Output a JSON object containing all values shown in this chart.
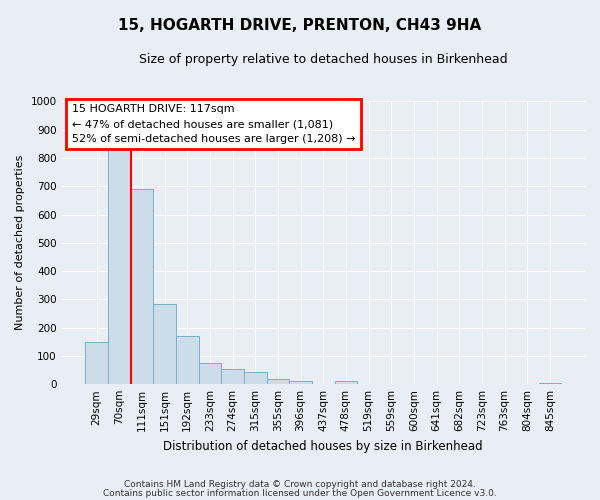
{
  "title": "15, HOGARTH DRIVE, PRENTON, CH43 9HA",
  "subtitle": "Size of property relative to detached houses in Birkenhead",
  "xlabel": "Distribution of detached houses by size in Birkenhead",
  "ylabel": "Number of detached properties",
  "bar_labels": [
    "29sqm",
    "70sqm",
    "111sqm",
    "151sqm",
    "192sqm",
    "233sqm",
    "274sqm",
    "315sqm",
    "355sqm",
    "396sqm",
    "437sqm",
    "478sqm",
    "519sqm",
    "559sqm",
    "600sqm",
    "641sqm",
    "682sqm",
    "723sqm",
    "763sqm",
    "804sqm",
    "845sqm"
  ],
  "bar_values": [
    150,
    828,
    690,
    285,
    172,
    75,
    55,
    42,
    20,
    12,
    0,
    10,
    0,
    0,
    0,
    0,
    0,
    0,
    0,
    0,
    5
  ],
  "bar_color": "#ccdce8",
  "bar_edgecolor": "#7aafc8",
  "vline_color": "red",
  "vline_index": 1.5,
  "ylim": [
    0,
    1000
  ],
  "yticks": [
    0,
    100,
    200,
    300,
    400,
    500,
    600,
    700,
    800,
    900,
    1000
  ],
  "annotation_title": "15 HOGARTH DRIVE: 117sqm",
  "annotation_line1": "← 47% of detached houses are smaller (1,081)",
  "annotation_line2": "52% of semi-detached houses are larger (1,208) →",
  "annotation_box_color": "white",
  "annotation_box_edgecolor": "red",
  "footer1": "Contains HM Land Registry data © Crown copyright and database right 2024.",
  "footer2": "Contains public sector information licensed under the Open Government Licence v3.0.",
  "background_color": "#e8eef4",
  "plot_bg_color": "#e8eef4",
  "grid_color": "white"
}
